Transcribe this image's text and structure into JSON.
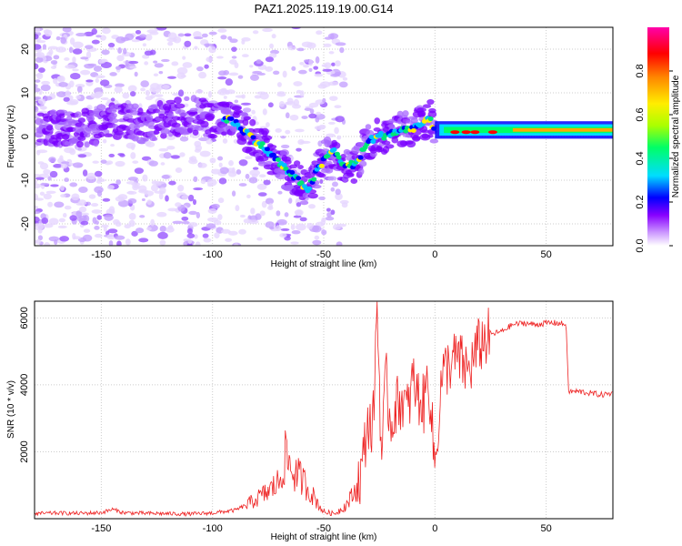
{
  "title": "PAZ1.2025.119.19.00.G14",
  "chart_data": [
    {
      "type": "heatmap",
      "xlabel": "Height of straight line (km)",
      "ylabel": "Frequency (Hz)",
      "xlim": [
        -180,
        80
      ],
      "ylim": [
        -25,
        25
      ],
      "x_ticks": [
        -150,
        -100,
        -50,
        0,
        50
      ],
      "y_ticks": [
        -20,
        -10,
        0,
        10,
        20
      ],
      "colorbar": {
        "label": "Normalized spectral amplitude",
        "range": [
          0,
          1
        ],
        "ticks": [
          "0.0",
          "0.2",
          "0.4",
          "0.6",
          "0.8"
        ],
        "colors": [
          "#ffffff",
          "#cc99ff",
          "#8800ff",
          "#0000ff",
          "#00ddff",
          "#00ff66",
          "#aaff00",
          "#ffee00",
          "#ff8800",
          "#ff0000",
          "#ff00aa"
        ]
      },
      "ridge": [
        [
          -150,
          3
        ],
        [
          -140,
          4
        ],
        [
          -130,
          3
        ],
        [
          -120,
          4
        ],
        [
          -110,
          5
        ],
        [
          -100,
          4
        ],
        [
          -92,
          4
        ],
        [
          -85,
          1
        ],
        [
          -78,
          -2
        ],
        [
          -70,
          -6
        ],
        [
          -62,
          -10
        ],
        [
          -57,
          -12
        ],
        [
          -52,
          -7
        ],
        [
          -46,
          -3
        ],
        [
          -40,
          -7
        ],
        [
          -35,
          -6
        ],
        [
          -30,
          -1
        ],
        [
          -25,
          0
        ],
        [
          -18,
          1
        ],
        [
          -10,
          2
        ],
        [
          -5,
          3
        ],
        [
          -2,
          4
        ],
        [
          0,
          1
        ],
        [
          5,
          0
        ],
        [
          15,
          1
        ],
        [
          30,
          2
        ],
        [
          50,
          2
        ],
        [
          80,
          2
        ]
      ],
      "grid": true,
      "legend": "none"
    },
    {
      "type": "line",
      "xlabel": "Height of straight line (km)",
      "ylabel": "SNR (10 * v/v)",
      "xlim": [
        -180,
        80
      ],
      "ylim": [
        0,
        6500
      ],
      "x_ticks": [
        -150,
        -100,
        -50,
        0,
        50
      ],
      "y_ticks": [
        2000,
        4000,
        6000
      ],
      "series": [
        {
          "color": "#ee2222",
          "x": [
            -180,
            -170,
            -160,
            -150,
            -145,
            -140,
            -130,
            -120,
            -110,
            -100,
            -90,
            -85,
            -80,
            -75,
            -70,
            -67,
            -64,
            -60,
            -55,
            -50,
            -45,
            -40,
            -36,
            -33,
            -30,
            -28,
            -26,
            -24,
            -22,
            -20,
            -18,
            -15,
            -12,
            -10,
            -8,
            -5,
            -3,
            0,
            3,
            6,
            10,
            15,
            20,
            25,
            30,
            35,
            40,
            45,
            50,
            55,
            59,
            60,
            65,
            70,
            75,
            80
          ],
          "y": [
            150,
            170,
            160,
            180,
            280,
            180,
            160,
            150,
            140,
            170,
            250,
            400,
            600,
            800,
            1100,
            1900,
            1400,
            1200,
            700,
            200,
            150,
            400,
            800,
            1400,
            3000,
            2500,
            6450,
            1800,
            4200,
            2800,
            3300,
            3600,
            3200,
            4200,
            3700,
            3400,
            4400,
            1500,
            4200,
            4600,
            4800,
            4400,
            5200,
            5500,
            5600,
            5800,
            5850,
            5800,
            5850,
            5850,
            5800,
            3800,
            3800,
            3750,
            3700,
            3750
          ]
        }
      ],
      "grid": true,
      "legend": "none"
    }
  ]
}
